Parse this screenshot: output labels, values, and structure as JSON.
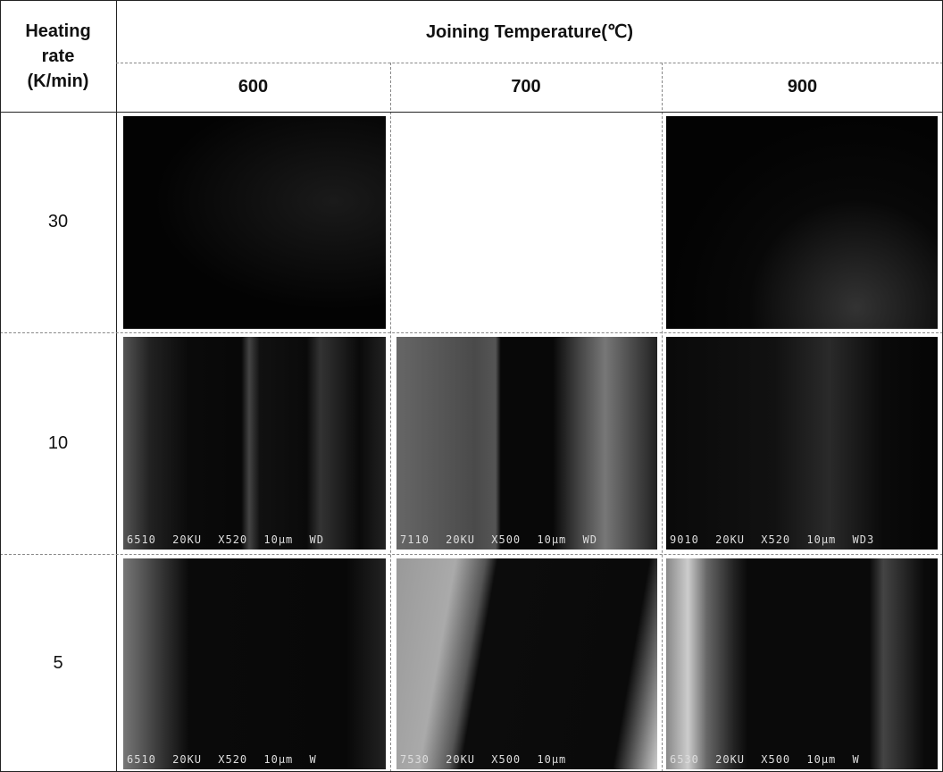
{
  "table": {
    "corner": "Heating rate (K/min)",
    "header": "Joining Temperature(℃)",
    "columns": [
      "600",
      "700",
      "900"
    ],
    "rows": [
      {
        "label": "30"
      },
      {
        "label": "10",
        "captions": [
          "6510 20KU X520 10μm WD",
          "7110 20KU X500 10μm WD",
          "9010 20KU X520 10μm WD3"
        ]
      },
      {
        "label": "5",
        "captions": [
          "6510 20KU X520 10μm W",
          "7530 20KU X500 10μm",
          "6530 20KU X500 10μm W"
        ]
      }
    ]
  }
}
